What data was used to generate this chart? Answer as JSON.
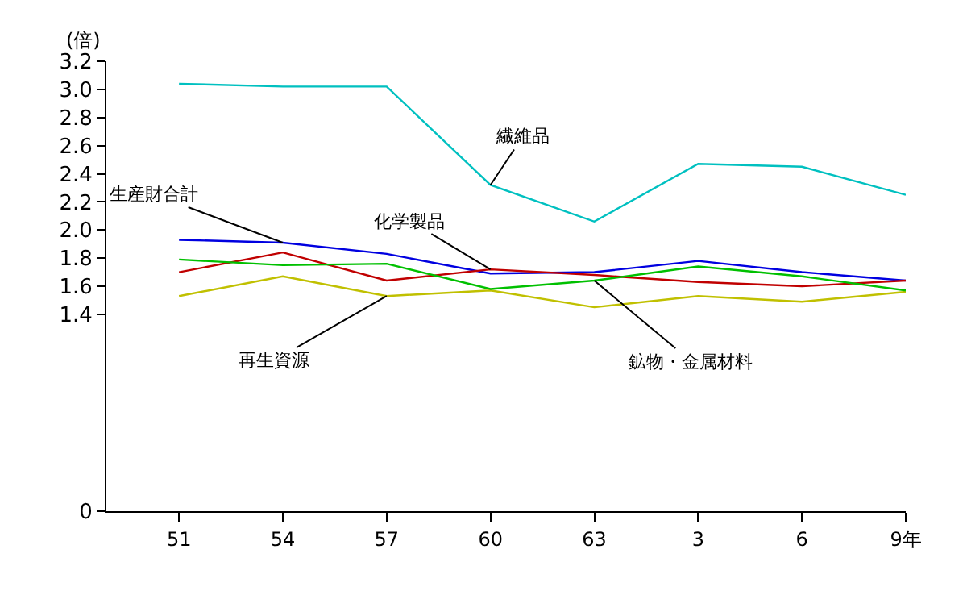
{
  "chart_data": {
    "type": "line",
    "ylabel": "(倍)",
    "categories": [
      "51",
      "54",
      "57",
      "60",
      "63",
      "3",
      "6",
      "9年"
    ],
    "ylim": [
      0,
      3.2
    ],
    "yticks": [
      0,
      1.4,
      1.6,
      1.8,
      {
        "value": 2,
        "label": "2.0"
      },
      2.2,
      2.4,
      2.6,
      2.8,
      {
        "value": 3,
        "label": "3.0"
      },
      3.2
    ],
    "legend": false,
    "marker": "none",
    "line_style": "solid",
    "series": [
      {
        "name": "繊維品",
        "color": "#00c0c0",
        "values": [
          3.04,
          3.02,
          3.02,
          2.32,
          2.06,
          2.47,
          2.45,
          2.25
        ]
      },
      {
        "name": "生産財合計",
        "color": "#0000e0",
        "values": [
          1.93,
          1.91,
          1.83,
          1.69,
          1.7,
          1.78,
          1.7,
          1.64
        ]
      },
      {
        "name": "化学製品",
        "color": "#c00000",
        "values": [
          1.7,
          1.84,
          1.64,
          1.72,
          1.68,
          1.63,
          1.6,
          1.64
        ]
      },
      {
        "name": "再生資源",
        "color": "#c0c000",
        "values": [
          1.53,
          1.67,
          1.53,
          1.57,
          1.45,
          1.53,
          1.49,
          1.56
        ]
      },
      {
        "name": "鉱物・金属材料",
        "color": "#00c000",
        "values": [
          1.79,
          1.75,
          1.76,
          1.58,
          1.64,
          1.74,
          1.67,
          1.57
        ]
      }
    ]
  }
}
